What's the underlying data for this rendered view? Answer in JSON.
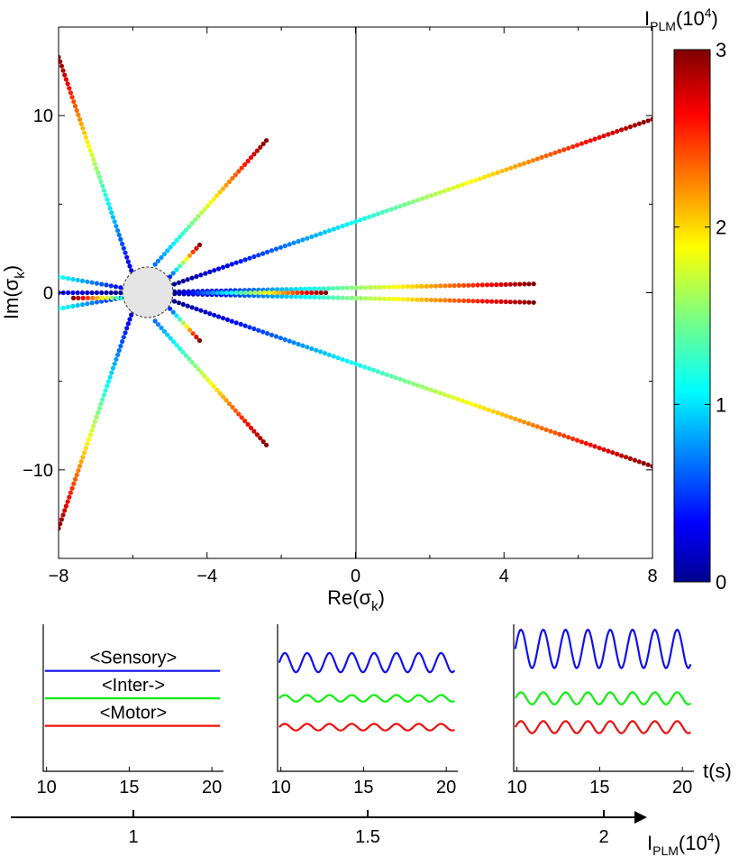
{
  "chart_data": [
    {
      "type": "scatter",
      "title": "",
      "xlabel": "Re(σ",
      "xlabel_sub": "k",
      "xlabel_close": ")",
      "ylabel": "Im(σ",
      "ylabel_sub": "k",
      "ylabel_close": ")",
      "xlim": [
        -8,
        8
      ],
      "ylim": [
        -15,
        15
      ],
      "x_ticks": [
        -8,
        -4,
        0,
        4,
        8
      ],
      "x_tick_labels": [
        "−8",
        "−4",
        "0",
        "4",
        "8"
      ],
      "y_ticks": [
        -10,
        0,
        10
      ],
      "y_tick_labels": [
        "−10",
        "0",
        "10"
      ],
      "grid": false,
      "reference_line_x": 0,
      "excluded_disk": {
        "center": [
          -5.6,
          0
        ],
        "radius": 0.6
      },
      "colorbar": {
        "label_main": "I",
        "label_sub": "PLM",
        "label_tail": "(10",
        "label_sup": "4",
        "label_close": ")",
        "range": [
          0,
          3
        ],
        "ticks": [
          0,
          1,
          2,
          3
        ],
        "tick_labels": [
          "0",
          "1",
          "2",
          "3"
        ],
        "colormap": "jet"
      },
      "series": [
        {
          "start": [
            -6.0,
            1.0
          ],
          "end": [
            -8.0,
            13.3
          ],
          "c_start": 0.2,
          "c_end": 3.0
        },
        {
          "start": [
            -6.0,
            -1.0
          ],
          "end": [
            -8.0,
            -13.3
          ],
          "c_start": 0.2,
          "c_end": 3.0
        },
        {
          "start": [
            -5.4,
            1.6
          ],
          "end": [
            -2.4,
            8.6
          ],
          "c_start": 0.7,
          "c_end": 3.0
        },
        {
          "start": [
            -5.4,
            -1.6
          ],
          "end": [
            -2.4,
            -8.6
          ],
          "c_start": 0.7,
          "c_end": 3.0
        },
        {
          "start": [
            -5.0,
            0.4
          ],
          "end": [
            8.0,
            9.8
          ],
          "c_start": 0.0,
          "c_end": 3.0
        },
        {
          "start": [
            -5.0,
            -0.4
          ],
          "end": [
            8.0,
            -9.8
          ],
          "c_start": 0.0,
          "c_end": 3.0
        },
        {
          "start": [
            -5.0,
            0.05
          ],
          "end": [
            4.8,
            0.5
          ],
          "c_start": 0.0,
          "c_end": 3.0
        },
        {
          "start": [
            -5.0,
            -0.05
          ],
          "end": [
            4.8,
            -0.55
          ],
          "c_start": 0.0,
          "c_end": 3.0
        },
        {
          "start": [
            -5.0,
            0.0
          ],
          "end": [
            -0.8,
            0.0
          ],
          "c_start": 0.0,
          "c_end": 3.0
        },
        {
          "start": [
            -5.0,
            0.9
          ],
          "end": [
            -4.2,
            2.7
          ],
          "c_start": 0.5,
          "c_end": 3.0
        },
        {
          "start": [
            -5.0,
            -0.9
          ],
          "end": [
            -4.2,
            -2.7
          ],
          "c_start": 0.5,
          "c_end": 3.0
        },
        {
          "start": [
            -6.2,
            0.25
          ],
          "end": [
            -8.0,
            0.9
          ],
          "c_start": 0.3,
          "c_end": 1.2
        },
        {
          "start": [
            -6.2,
            -0.25
          ],
          "end": [
            -8.0,
            -0.9
          ],
          "c_start": 0.3,
          "c_end": 1.2
        },
        {
          "start": [
            -6.2,
            0.0
          ],
          "end": [
            -8.0,
            0.0
          ],
          "c_start": 0.0,
          "c_end": 0.4
        },
        {
          "start": [
            -6.3,
            -0.3
          ],
          "end": [
            -7.6,
            -0.3
          ],
          "c_start": 1.2,
          "c_end": 3.0
        }
      ]
    },
    {
      "type": "line",
      "xlabel": "t(s)",
      "panels": [
        {
          "x_ticks": [
            10,
            15,
            20
          ],
          "x_tick_labels": [
            "10",
            "15",
            "20"
          ],
          "xlim": [
            9.8,
            20.7
          ],
          "series": [
            {
              "name": "<Sensory>",
              "color": "#1010ee",
              "offset": 3,
              "amplitude": 0.0,
              "period": 1.35,
              "phase": 0
            },
            {
              "name": "<Inter->",
              "color": "#10ee10",
              "offset": 2,
              "amplitude": 0.0,
              "period": 1.35,
              "phase": 0
            },
            {
              "name": "<Motor>",
              "color": "#ee1010",
              "offset": 1,
              "amplitude": 0.0,
              "period": 1.35,
              "phase": 0
            }
          ]
        },
        {
          "x_ticks": [
            10,
            15,
            20
          ],
          "x_tick_labels": [
            "10",
            "15",
            "20"
          ],
          "xlim": [
            9.8,
            20.7
          ],
          "series": [
            {
              "color": "#1010ee",
              "offset": 3.3,
              "amplitude": 0.35,
              "period": 1.35,
              "phase": 0
            },
            {
              "color": "#10ee10",
              "offset": 2.0,
              "amplitude": 0.12,
              "period": 1.35,
              "phase": 0
            },
            {
              "color": "#ee1010",
              "offset": 0.95,
              "amplitude": 0.12,
              "period": 1.35,
              "phase": 0
            }
          ]
        },
        {
          "x_ticks": [
            10,
            15,
            20
          ],
          "x_tick_labels": [
            "10",
            "15",
            "20"
          ],
          "xlim": [
            9.8,
            20.7
          ],
          "series": [
            {
              "color": "#1010ee",
              "offset": 3.8,
              "amplitude": 0.7,
              "period": 1.35,
              "phase": 0
            },
            {
              "color": "#10ee10",
              "offset": 2.0,
              "amplitude": 0.22,
              "period": 1.35,
              "phase": 0
            },
            {
              "color": "#ee1010",
              "offset": 0.95,
              "amplitude": 0.22,
              "period": 1.35,
              "phase": 0
            }
          ]
        }
      ]
    },
    {
      "type": "axis",
      "label_main": "I",
      "label_sub": "PLM",
      "label_tail": "(10",
      "label_sup": "4",
      "label_close": ")",
      "ticks": [
        1,
        1.5,
        2
      ],
      "tick_labels": [
        "1",
        "1.5",
        "2"
      ],
      "xlim": [
        0.0,
        2.5
      ]
    }
  ]
}
